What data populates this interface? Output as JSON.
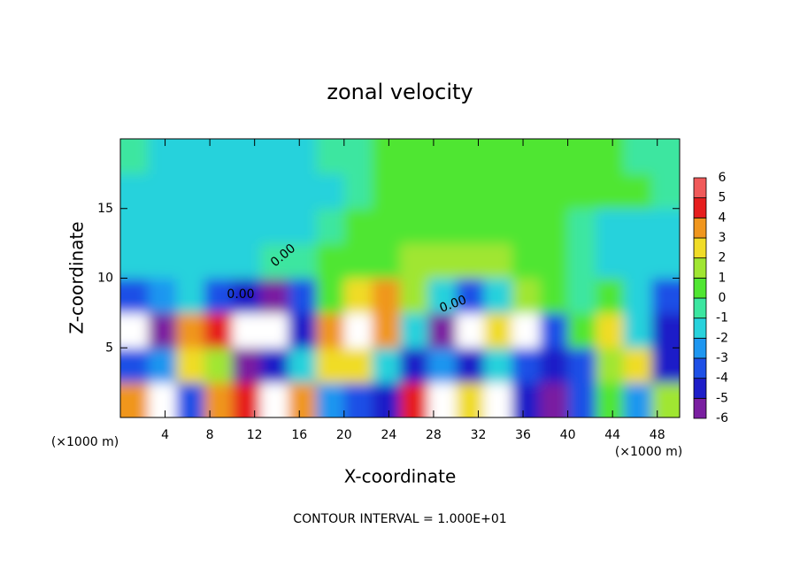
{
  "chart_data": {
    "type": "heatmap",
    "title": "zonal velocity",
    "xlabel": "X-coordinate",
    "ylabel": "Z-coordinate",
    "xunit_labels": [
      "(×1000 m)",
      "(×1000 m)"
    ],
    "footnote": "CONTOUR INTERVAL = 1.000E+01",
    "contour_labels": [
      "0.00",
      "0.00",
      "0.00"
    ],
    "xlim": [
      0,
      50
    ],
    "ylim": [
      0,
      20
    ],
    "xticks": [
      4,
      8,
      12,
      16,
      20,
      24,
      28,
      32,
      36,
      40,
      44,
      48
    ],
    "yticks": [
      5,
      10,
      15
    ],
    "x": [
      1.25,
      3.75,
      6.25,
      8.75,
      11.25,
      13.75,
      16.25,
      18.75,
      21.25,
      23.75,
      26.25,
      28.75,
      31.25,
      33.75,
      36.25,
      38.75,
      41.25,
      43.75,
      46.25,
      48.75
    ],
    "y": [
      1.25,
      3.75,
      6.25,
      8.75,
      11.25,
      13.75,
      16.25,
      18.75
    ],
    "z": [
      [
        4,
        8,
        -3,
        4,
        5,
        8,
        4,
        -2,
        -3,
        -4,
        5,
        8,
        3,
        -8,
        -4,
        -5,
        -3,
        1,
        -2,
        2
      ],
      [
        -3,
        -2,
        3,
        2,
        -5,
        -4,
        -1,
        3,
        3,
        -1,
        -4,
        -2,
        -4,
        -1,
        -3,
        -4,
        -3,
        2,
        3,
        -4
      ],
      [
        -8,
        -5,
        4,
        5,
        -8,
        -8,
        -4,
        4,
        8,
        4,
        -1,
        -5,
        -8,
        3,
        8,
        -3,
        1,
        3,
        -1,
        -4
      ],
      [
        -3,
        -2.5,
        -1.5,
        -3,
        -4.5,
        -5,
        -3,
        1,
        3,
        3.5,
        2,
        -1,
        -3,
        -1,
        2,
        0.5,
        -0.5,
        0.5,
        -1.5,
        -3
      ],
      [
        -1.5,
        -1.5,
        -1.5,
        -1.2,
        -1,
        -0.5,
        -0.8,
        0.2,
        0.5,
        1,
        1.5,
        1.5,
        1.5,
        1.2,
        0.8,
        0.5,
        -0.5,
        -1,
        -1.5,
        -1.5
      ],
      [
        -1.5,
        -1.5,
        -1.5,
        -1.5,
        -1.5,
        -1.5,
        -1,
        -0.5,
        0.3,
        0.5,
        0.5,
        0.5,
        0.5,
        0.5,
        0.5,
        0.3,
        -0.5,
        -1,
        -1,
        -1
      ],
      [
        -1,
        -1.5,
        -1.5,
        -1.5,
        -1.5,
        -1.5,
        -1.5,
        -1,
        -0.5,
        0.5,
        0.8,
        0.8,
        0.8,
        0.5,
        0.5,
        0.5,
        0.5,
        0.5,
        0.2,
        -0.5
      ],
      [
        -0.5,
        -1,
        -1.5,
        -1.5,
        -1.5,
        -1.5,
        -1,
        -0.5,
        0,
        0.5,
        0.5,
        0.5,
        0.5,
        0.5,
        0.5,
        0.5,
        0.5,
        0.5,
        0,
        -0.5
      ]
    ],
    "colorbar": {
      "levels": [
        -6,
        -5,
        -4,
        -3,
        -2,
        -1,
        0,
        1,
        2,
        3,
        4,
        5,
        6
      ],
      "colors": [
        "#7a1fa0",
        "#1e1ec8",
        "#1e50e6",
        "#1e96f0",
        "#28d2dc",
        "#3ce6a0",
        "#50e632",
        "#a0e632",
        "#f0dc28",
        "#f0961e",
        "#e61e1e",
        "#f05a5a",
        "#f5a5a5"
      ]
    }
  }
}
